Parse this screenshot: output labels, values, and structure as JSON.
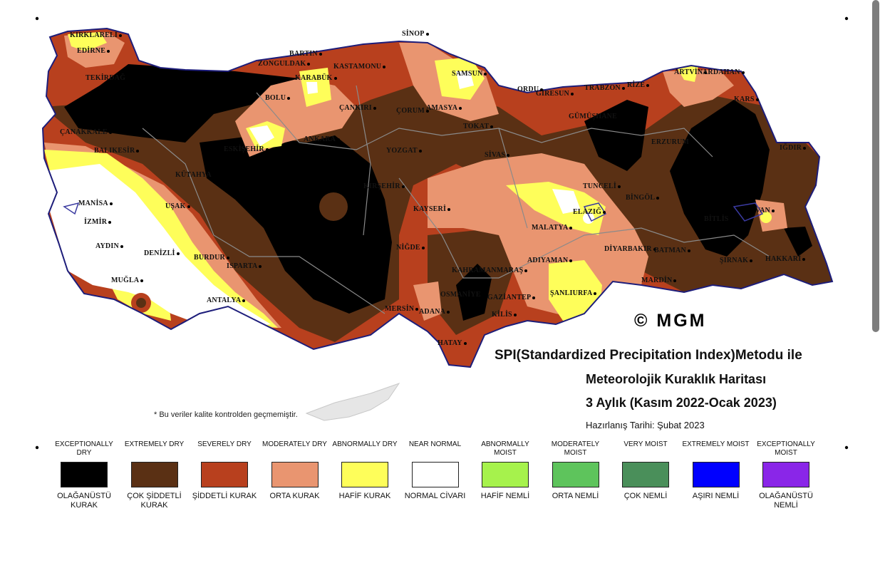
{
  "map": {
    "watermark": "© MGM",
    "title_lines": [
      "SPI(Standardized Precipitation Index)Metodu ile",
      "Meteorolojik Kuraklık Haritası",
      "3 Aylık (Kasım 2022-Ocak 2023)",
      "Hazırlanış Tarihi: Şubat 2023"
    ],
    "note": "* Bu veriler kalite kontrolden geçmemiştir.",
    "cities": [
      "KIRKLARELİ",
      "EDİRNE",
      "TEKİRDAĞ",
      "ÇANAKKALE",
      "BALIKESİR",
      "MANİSA",
      "İZMİR",
      "AYDIN",
      "MUĞLA",
      "DENİZLİ",
      "UŞAK",
      "KÜTAHYA",
      "BURDUR",
      "ISPARTA",
      "ANTALYA",
      "ZONGULDAK",
      "BARTIN",
      "KARABÜK",
      "BOLU",
      "SİNOP",
      "KASTAMONU",
      "ÇANKIRI",
      "ÇORUM",
      "AMASYA",
      "SAMSUN",
      "TOKAT",
      "YOZGAT",
      "SİVAS",
      "ANKARA",
      "ESKİŞEHİR",
      "KIRŞEHİR",
      "KAYSERİ",
      "NİĞDE",
      "MERSİN",
      "ADANA",
      "OSMANİYE",
      "KAHRAMANMARAŞ",
      "GAZİANTEP",
      "KİLİS",
      "HATAY",
      "ADIYAMAN",
      "ŞANLIURFA",
      "MALATYA",
      "ELAZIĞ",
      "TUNCELİ",
      "BİNGÖL",
      "DİYARBAKIR",
      "BATMAN",
      "MARDİN",
      "ŞIRNAK",
      "HAKKARİ",
      "VAN",
      "BİTLİS",
      "ORDU",
      "GİRESUN",
      "TRABZON",
      "RİZE",
      "ARTVİN",
      "ARDAHAN",
      "KARS",
      "IĞDIR",
      "ERZURUM",
      "GÜMÜŞHANE"
    ]
  },
  "legend": [
    {
      "en": "EXCEPTIONALLY DRY",
      "tr": "OLAĞANÜSTÜ KURAK",
      "color": "#000000"
    },
    {
      "en": "EXTREMELY DRY",
      "tr": "ÇOK ŞİDDETLİ KURAK",
      "color": "#5a3014"
    },
    {
      "en": "SEVERELY DRY",
      "tr": "ŞİDDETLİ KURAK",
      "color": "#b8401e"
    },
    {
      "en": "MODERATELY DRY",
      "tr": "ORTA KURAK",
      "color": "#e99570"
    },
    {
      "en": "ABNORMALLY DRY",
      "tr": "HAFİF KURAK",
      "color": "#fefe5a"
    },
    {
      "en": "NEAR NORMAL",
      "tr": "NORMAL CİVARI",
      "color": "#ffffff"
    },
    {
      "en": "ABNORMALLY MOIST",
      "tr": "HAFİF NEMLİ",
      "color": "#a6f24c"
    },
    {
      "en": "MODERATELY MOIST",
      "tr": "ORTA NEMLİ",
      "color": "#5ec45c"
    },
    {
      "en": "VERY MOIST",
      "tr": "ÇOK NEMLİ",
      "color": "#4a8f5a"
    },
    {
      "en": "EXTREMELY MOIST",
      "tr": "AŞIRI NEMLİ",
      "color": "#0000ff"
    },
    {
      "en": "EXCEPTIONALLY MOIST",
      "tr": "OLAĞANÜSTÜ NEMLİ",
      "color": "#8a26e8"
    }
  ]
}
